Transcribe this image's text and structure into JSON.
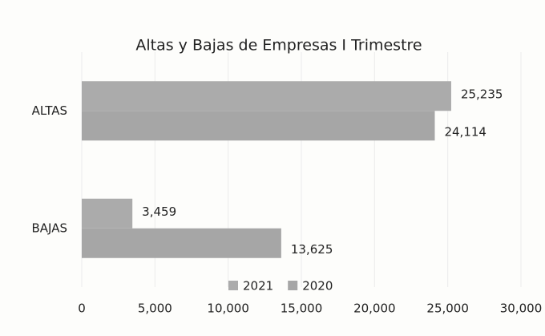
{
  "chart_data": {
    "type": "hbar",
    "title": "Altas y Bajas de Empresas I Trimestre",
    "categories": [
      "ALTAS",
      "BAJAS"
    ],
    "series": [
      {
        "name": "2021",
        "color": "#ababab",
        "values": [
          25235,
          3459
        ],
        "value_labels": [
          "25,235",
          "3,459"
        ]
      },
      {
        "name": "2020",
        "color": "#a6a6a6",
        "values": [
          24114,
          13625
        ],
        "value_labels": [
          "24,114",
          "13,625"
        ]
      }
    ],
    "xlim": [
      0,
      30000
    ],
    "xticks": [
      0,
      {
        "value": 5000,
        "label": "5,000"
      },
      {
        "value": 10000,
        "label": "10,000"
      },
      {
        "value": 15000,
        "label": "15,000"
      },
      {
        "value": 20000,
        "label": "20,000"
      },
      {
        "value": 25000,
        "label": "25,000"
      },
      {
        "value": 30000,
        "label": "30,000"
      }
    ],
    "grid": true,
    "legend": "bottom"
  }
}
